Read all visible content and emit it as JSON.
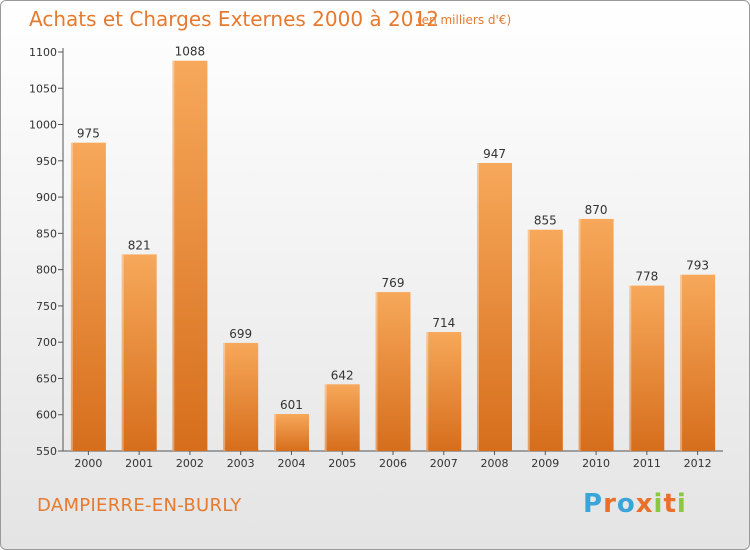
{
  "header": {
    "title": "Achats et Charges Externes 2000 à 2012",
    "unit": "(en milliers d'€)"
  },
  "footer": {
    "commune": "DAMPIERRE-EN-BURLY",
    "logo_letters": [
      "P",
      "r",
      "o",
      "x",
      "i",
      "t",
      "i"
    ],
    "logo_colors": [
      "#3aa5d8",
      "#e8702a",
      "#3aa5d8",
      "#e8702a",
      "#8dc63f",
      "#e8702a",
      "#8dc63f"
    ]
  },
  "chart_data": {
    "type": "bar",
    "title": "Achats et Charges Externes 2000 à 2012",
    "subtitle": "(en milliers d'€)",
    "categories": [
      "2000",
      "2001",
      "2002",
      "2003",
      "2004",
      "2005",
      "2006",
      "2007",
      "2008",
      "2009",
      "2010",
      "2011",
      "2012"
    ],
    "values": [
      975,
      821,
      1088,
      699,
      601,
      642,
      769,
      714,
      947,
      855,
      870,
      778,
      793
    ],
    "ylim": [
      550,
      1100
    ],
    "yticks": [
      550,
      600,
      650,
      700,
      750,
      800,
      850,
      900,
      950,
      1000,
      1050,
      1100
    ],
    "grid": false,
    "legend": "none",
    "bar_color_top": "#f7a85a",
    "bar_color_bottom": "#d66e1c"
  }
}
